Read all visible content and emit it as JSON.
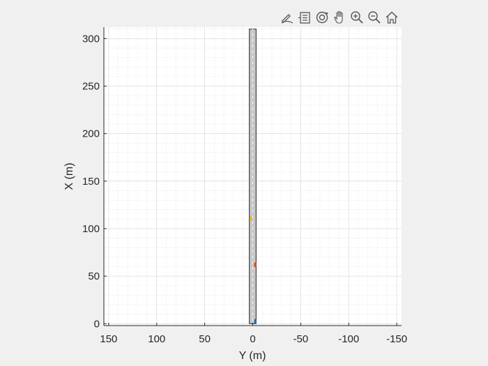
{
  "toolbar": {
    "buttons": [
      {
        "name": "edit-plot-icon"
      },
      {
        "name": "legend-icon"
      },
      {
        "name": "rotate-3d-icon"
      },
      {
        "name": "pan-hand-icon"
      },
      {
        "name": "zoom-in-icon"
      },
      {
        "name": "zoom-out-icon"
      },
      {
        "name": "home-reset-view-icon"
      }
    ]
  },
  "chart_data": {
    "type": "scatter",
    "title": "",
    "xlabel": "Y (m)",
    "ylabel": "X (m)",
    "xlim": [
      155,
      -155
    ],
    "ylim": [
      -2,
      312
    ],
    "x_reversed": true,
    "xticks": [
      150,
      100,
      50,
      0,
      -50,
      -100,
      -150
    ],
    "xtick_labels": [
      "150",
      "100",
      "50",
      "0",
      "-50",
      "-100",
      "-150"
    ],
    "yticks": [
      0,
      50,
      100,
      150,
      200,
      250,
      300
    ],
    "ytick_labels": [
      "0",
      "50",
      "100",
      "150",
      "200",
      "250",
      "300"
    ],
    "grid": true,
    "minor_grid": true,
    "road": {
      "y_min": -3.5,
      "y_max": 3.5,
      "x_min": 0,
      "x_max": 310,
      "color": "#c8c8c8"
    },
    "vehicles": [
      {
        "name": "ego",
        "y": -2.5,
        "x": 2.5,
        "length": 4.7,
        "width": 1.8,
        "color": "#1f6bb8"
      },
      {
        "name": "vehicle-2",
        "y": -2.5,
        "x": 62,
        "length": 4.7,
        "width": 2.2,
        "color": "#d95319"
      },
      {
        "name": "vehicle-3",
        "y": 2.0,
        "x": 111,
        "length": 4.7,
        "width": 2.2,
        "color": "#edb120"
      }
    ]
  }
}
